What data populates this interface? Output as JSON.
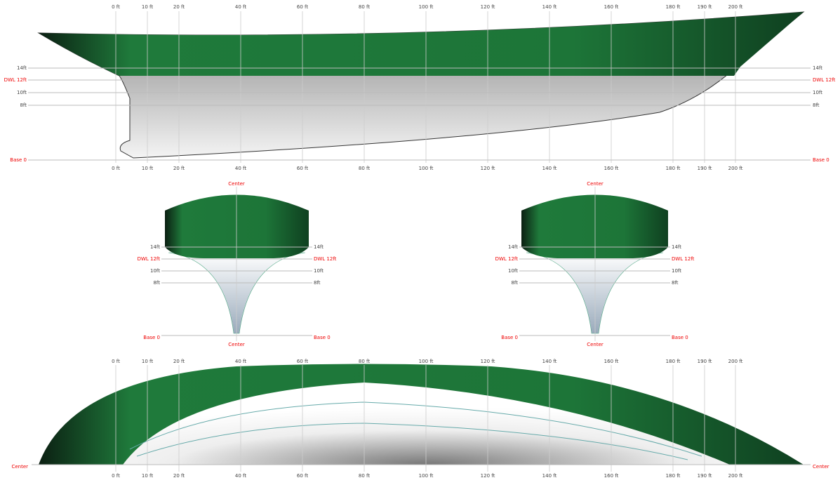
{
  "stations": [
    "0 ft",
    "10 ft",
    "20 ft",
    "40 ft",
    "60 ft",
    "80 ft",
    "100 ft",
    "120 ft",
    "140 ft",
    "160 ft",
    "180 ft",
    "190 ft",
    "200 ft"
  ],
  "waterlines": [
    "14ft",
    "DWL 12ft",
    "10ft",
    "8ft"
  ],
  "base": "Base 0",
  "center": "Center"
}
